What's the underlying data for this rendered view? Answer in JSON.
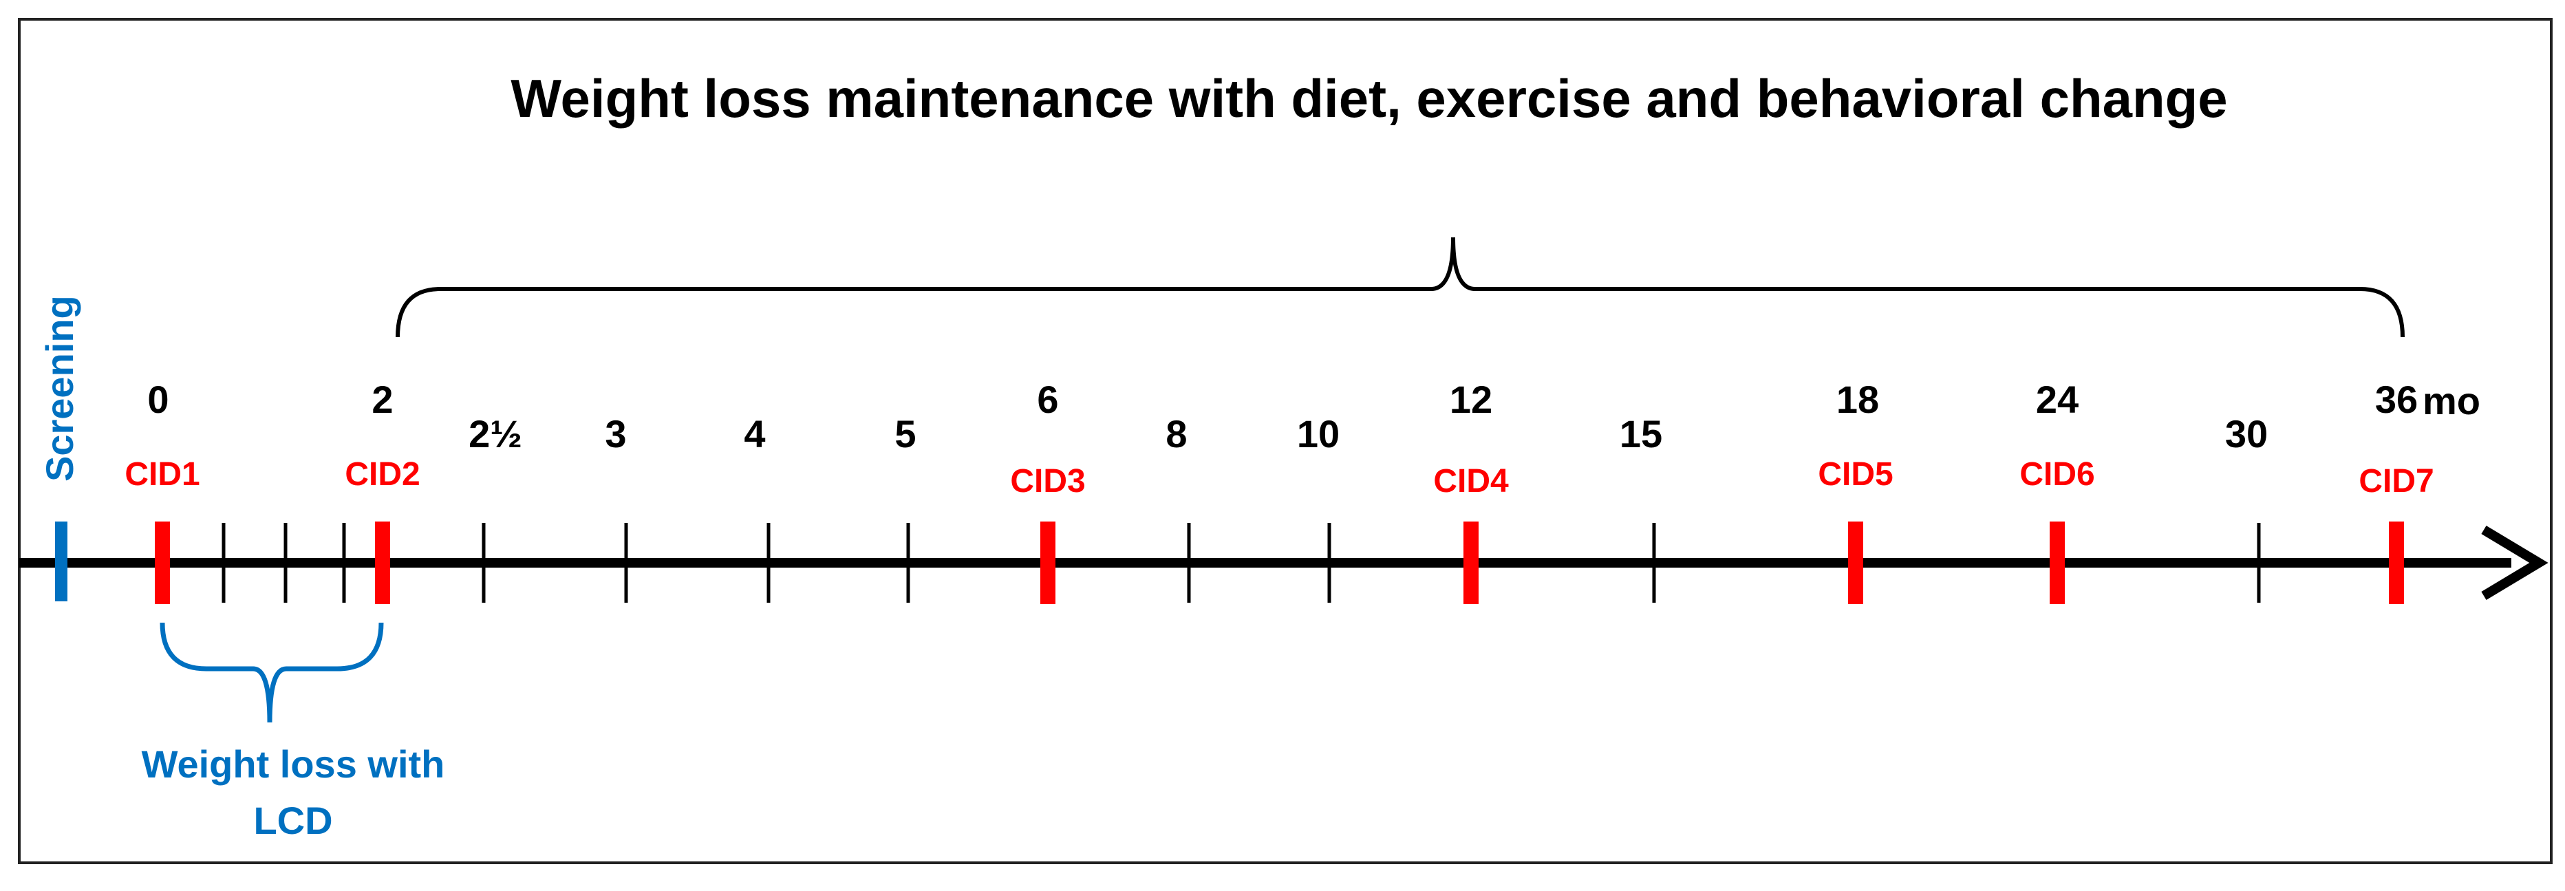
{
  "title": "Weight loss maintenance with diet, exercise and behavioral change",
  "screening_label": "Screening",
  "lcd_label_line1": "Weight loss with",
  "lcd_label_line2": "LCD",
  "unit_label": "mo",
  "colors": {
    "axis": "#000000",
    "visit": "#ff0000",
    "screening": "#0070c0",
    "lcd": "#0070c0",
    "title": "#000000"
  },
  "ticks": [
    {
      "label": "0",
      "cid": "CID1",
      "visit": true
    },
    {
      "label": "",
      "cid": "",
      "visit": false
    },
    {
      "label": "",
      "cid": "",
      "visit": false
    },
    {
      "label": "",
      "cid": "",
      "visit": false
    },
    {
      "label": "2",
      "cid": "CID2",
      "visit": true
    },
    {
      "label": "2½",
      "cid": "",
      "visit": false
    },
    {
      "label": "3",
      "cid": "",
      "visit": false
    },
    {
      "label": "4",
      "cid": "",
      "visit": false
    },
    {
      "label": "5",
      "cid": "",
      "visit": false
    },
    {
      "label": "6",
      "cid": "CID3",
      "visit": true
    },
    {
      "label": "8",
      "cid": "",
      "visit": false
    },
    {
      "label": "10",
      "cid": "",
      "visit": false
    },
    {
      "label": "12",
      "cid": "CID4",
      "visit": true
    },
    {
      "label": "15",
      "cid": "",
      "visit": false
    },
    {
      "label": "18",
      "cid": "CID5",
      "visit": true
    },
    {
      "label": "24",
      "cid": "CID6",
      "visit": true
    },
    {
      "label": "30",
      "cid": "",
      "visit": false
    },
    {
      "label": "36",
      "cid": "CID7",
      "visit": true
    }
  ]
}
